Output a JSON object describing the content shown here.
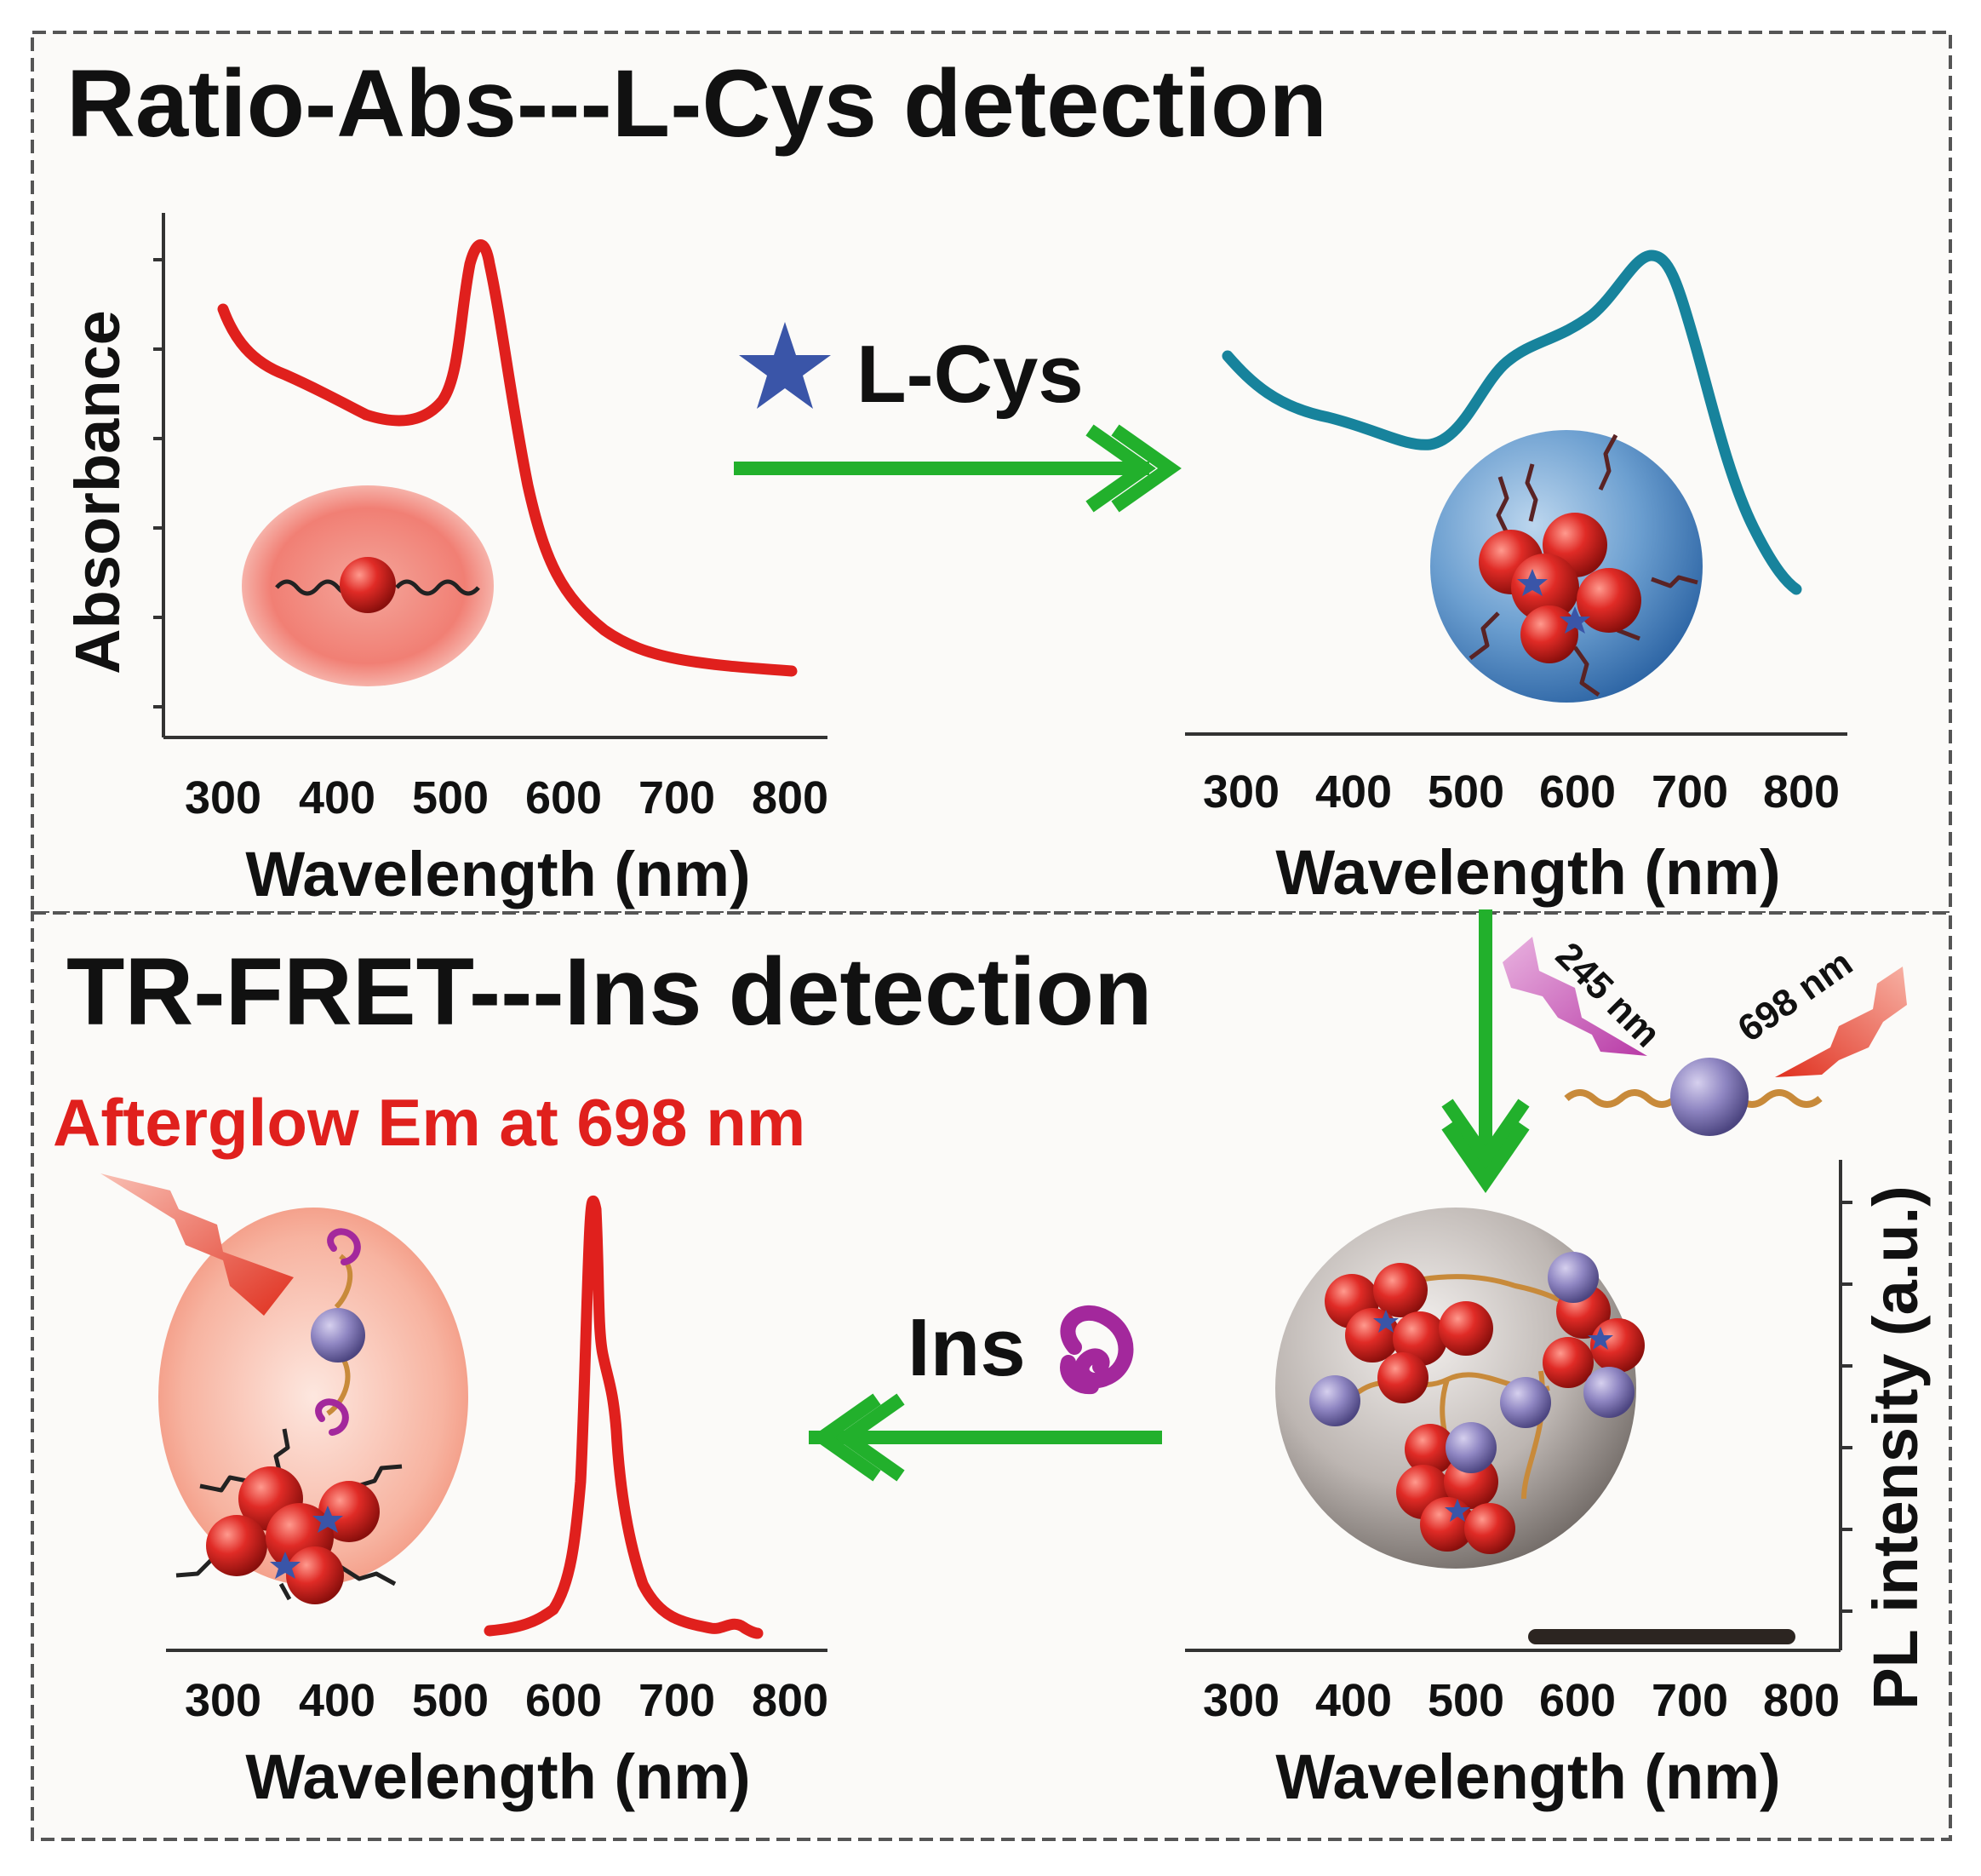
{
  "colors": {
    "background": "#fbfaf8",
    "frame": "#555555",
    "red_curve": "#e0201d",
    "teal_curve": "#17839c",
    "arrow_green": "#22b02c",
    "star_blue": "#3a55a8",
    "insulin_purple": "#a3289c",
    "afterglow_red": "#e0201d",
    "pl_bar": "#2c2521"
  },
  "top_panel": {
    "title": "Ratio-Abs---L-Cys detection",
    "reagent_label": "L-Cys",
    "reagent_icon": "star-icon",
    "left_chart": {
      "ylabel": "Absorbance",
      "xlabel": "Wavelength (nm)",
      "ticks": [
        "300",
        "400",
        "500",
        "600",
        "700",
        "800"
      ]
    },
    "right_chart": {
      "xlabel": "Wavelength (nm)",
      "ticks": [
        "300",
        "400",
        "500",
        "600",
        "700",
        "800"
      ]
    }
  },
  "bottom_panel": {
    "title": "TR-FRET---Ins detection",
    "afterglow_label": "Afterglow Em at 698 nm",
    "reagent_label": "Ins",
    "reagent_icon": "insulin-icon",
    "excitation_label": "245 nm",
    "emission_label": "698 nm",
    "left_chart": {
      "xlabel": "Wavelength (nm)",
      "ticks": [
        "300",
        "400",
        "500",
        "600",
        "700",
        "800"
      ]
    },
    "right_chart": {
      "ylabel": "PL intensity (a.u.)",
      "xlabel": "Wavelength (nm)",
      "ticks": [
        "300",
        "400",
        "500",
        "600",
        "700",
        "800"
      ]
    }
  }
}
